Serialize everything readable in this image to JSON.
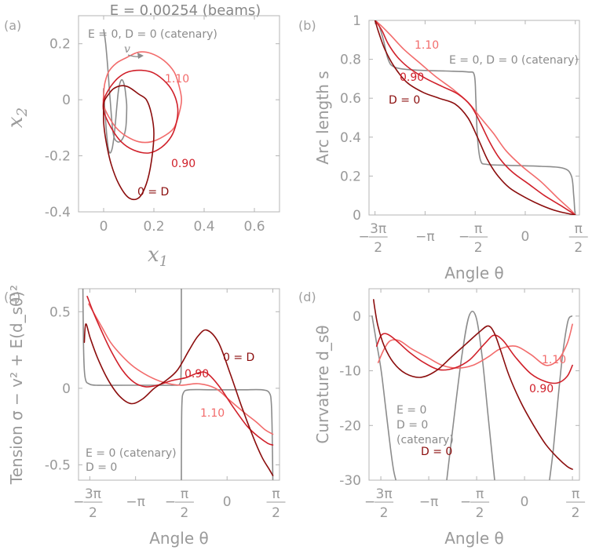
{
  "figure_title": "E = 0.00254 (beams)",
  "colors": {
    "catenary": "#8c8c8c",
    "D0": "#8b0d0d",
    "D090": "#d0202a",
    "D110": "#f26b6b",
    "axis": "#b4b4b4",
    "text": "#9a9a9a"
  },
  "chart_data": [
    {
      "panel": "(a)",
      "type": "line",
      "xlabel": "x_1",
      "ylabel": "x_2",
      "xlim": [
        -0.1,
        0.7
      ],
      "ylim": [
        -0.4,
        0.3
      ],
      "xticks": [
        0,
        0.2,
        0.4,
        0.6
      ],
      "xtick_labels": [
        "0",
        "0.2",
        "0.4",
        "0.6"
      ],
      "yticks": [
        -0.4,
        -0.2,
        0,
        0.2
      ],
      "ytick_labels": [
        "-0.4",
        "-0.2",
        "0",
        "0.2"
      ],
      "annotations": [
        {
          "text": "E = 0, D = 0 (catenary)",
          "color": "catenary"
        },
        {
          "text": "v",
          "color": "catenary"
        },
        {
          "text": "1.10",
          "color": "D110"
        },
        {
          "text": "0.90",
          "color": "D090"
        },
        {
          "text": "0 = D",
          "color": "D0"
        }
      ],
      "series": [
        {
          "name": "catenary",
          "color": "catenary",
          "x": [
            0,
            0.0,
            0.005,
            0.01,
            0.015,
            0.02,
            0.025,
            0.03,
            0.035,
            0.04,
            0.045,
            0.05,
            0.055,
            0.06,
            0.065,
            0.07,
            0.075,
            0.08,
            0.085,
            0.09,
            0.092,
            0.088,
            0.075,
            0.055,
            0.038,
            0.026,
            0.016,
            0.008,
            0.002,
            0
          ],
          "y": [
            0.04,
            0.02,
            -0.04,
            -0.1,
            -0.15,
            -0.18,
            -0.19,
            -0.185,
            -0.17,
            -0.14,
            -0.1,
            -0.05,
            0.0,
            0.04,
            0.06,
            0.07,
            0.07,
            0.06,
            0.04,
            0.0,
            -0.03,
            -0.1,
            -0.14,
            -0.15,
            -0.12,
            0.0,
            0.12,
            0.2,
            0.24,
            0.25
          ]
        },
        {
          "name": "D = 1.10",
          "color": "D110",
          "x": [
            0,
            0.0,
            0.02,
            0.05,
            0.09,
            0.14,
            0.19,
            0.24,
            0.28,
            0.3,
            0.31,
            0.3,
            0.28,
            0.24,
            0.19,
            0.14,
            0.09,
            0.05,
            0.02,
            0.005,
            0
          ],
          "y": [
            0.02,
            -0.02,
            -0.06,
            -0.1,
            -0.13,
            -0.15,
            -0.15,
            -0.13,
            -0.1,
            -0.05,
            0.0,
            0.05,
            0.1,
            0.14,
            0.165,
            0.17,
            0.15,
            0.13,
            0.1,
            0.06,
            0.02
          ]
        },
        {
          "name": "D = 0.90",
          "color": "D090",
          "x": [
            0,
            0.0,
            0.03,
            0.07,
            0.12,
            0.18,
            0.23,
            0.27,
            0.29,
            0.295,
            0.28,
            0.25,
            0.2,
            0.15,
            0.1,
            0.06,
            0.03,
            0.01,
            0
          ],
          "y": [
            0.0,
            -0.04,
            -0.1,
            -0.15,
            -0.18,
            -0.19,
            -0.17,
            -0.13,
            -0.08,
            -0.03,
            0.02,
            0.06,
            0.095,
            0.105,
            0.1,
            0.08,
            0.05,
            0.02,
            0.0
          ]
        },
        {
          "name": "D = 0",
          "color": "D0",
          "x": [
            0,
            0.0,
            0.01,
            0.03,
            0.06,
            0.1,
            0.14,
            0.17,
            0.19,
            0.2,
            0.19,
            0.17,
            0.14,
            0.1,
            0.07,
            0.04,
            0.02,
            0.005,
            0
          ],
          "y": [
            -0.02,
            -0.08,
            -0.15,
            -0.23,
            -0.3,
            -0.35,
            -0.35,
            -0.3,
            -0.22,
            -0.12,
            -0.05,
            0.0,
            0.02,
            0.045,
            0.05,
            0.04,
            0.02,
            0.0,
            -0.02
          ]
        }
      ]
    },
    {
      "panel": "(b)",
      "type": "line",
      "xlabel": "Angle θ",
      "ylabel": "Arc length s",
      "xlim": [
        -4.9,
        1.7
      ],
      "ylim": [
        0,
        1
      ],
      "xticks": [
        -4.712,
        -3.1416,
        -1.5708,
        0,
        1.5708
      ],
      "xtick_labels": [
        "-3π/2",
        "-π",
        "-π/2",
        "0",
        "π/2"
      ],
      "yticks": [
        0,
        0.2,
        0.4,
        0.6,
        0.8,
        1
      ],
      "ytick_labels": [
        "0",
        "0.2",
        "0.4",
        "0.6",
        "0.8",
        "1"
      ],
      "annotations": [
        {
          "text": "1.10",
          "color": "D110"
        },
        {
          "text": "E = 0, D = 0 (catenary)",
          "color": "catenary"
        },
        {
          "text": "0.90",
          "color": "D090"
        },
        {
          "text": "D = 0",
          "color": "D0"
        }
      ],
      "series": [
        {
          "name": "catenary",
          "color": "catenary",
          "x": [
            -4.71,
            -4.6,
            -4.45,
            -4.3,
            -4.1,
            -3.5,
            -2.5,
            -1.8,
            -1.6,
            -1.55,
            -1.5,
            -1.4,
            -1.2,
            -0.5,
            0.5,
            1.2,
            1.45,
            1.52,
            1.55,
            1.57
          ],
          "y": [
            1,
            0.98,
            0.9,
            0.8,
            0.76,
            0.745,
            0.74,
            0.735,
            0.72,
            0.6,
            0.4,
            0.28,
            0.26,
            0.255,
            0.25,
            0.24,
            0.2,
            0.1,
            0.03,
            0
          ]
        },
        {
          "name": "D = 1.10",
          "color": "D110",
          "x": [
            -4.71,
            -4.5,
            -4.2,
            -3.8,
            -3.3,
            -2.8,
            -2.3,
            -1.8,
            -1.4,
            -1.0,
            -0.6,
            -0.1,
            0.5,
            1.0,
            1.4,
            1.57
          ],
          "y": [
            1,
            0.97,
            0.92,
            0.85,
            0.78,
            0.71,
            0.65,
            0.58,
            0.5,
            0.42,
            0.33,
            0.25,
            0.17,
            0.09,
            0.03,
            0
          ]
        },
        {
          "name": "D = 0.90",
          "color": "D090",
          "x": [
            -4.71,
            -4.5,
            -4.3,
            -4.0,
            -3.6,
            -3.1,
            -2.6,
            -2.1,
            -1.7,
            -1.4,
            -1.1,
            -0.8,
            -0.4,
            0.1,
            0.6,
            1.1,
            1.57
          ],
          "y": [
            1,
            0.95,
            0.88,
            0.81,
            0.75,
            0.7,
            0.66,
            0.62,
            0.56,
            0.47,
            0.37,
            0.29,
            0.22,
            0.16,
            0.1,
            0.05,
            0
          ]
        },
        {
          "name": "D = 0",
          "color": "D0",
          "x": [
            -4.71,
            -4.6,
            -4.4,
            -4.1,
            -3.7,
            -3.2,
            -2.7,
            -2.2,
            -1.8,
            -1.5,
            -1.2,
            -0.9,
            -0.5,
            0.0,
            0.5,
            1.0,
            1.57
          ],
          "y": [
            1,
            0.94,
            0.85,
            0.76,
            0.68,
            0.63,
            0.6,
            0.57,
            0.5,
            0.4,
            0.29,
            0.21,
            0.14,
            0.09,
            0.05,
            0.02,
            0
          ]
        }
      ]
    },
    {
      "panel": "(c)",
      "type": "line",
      "xlabel": "Angle θ",
      "ylabel": "Tension σ − v² + E(d_sθ)²",
      "xlim": [
        -5.1,
        1.8
      ],
      "ylim": [
        -0.6,
        0.65
      ],
      "xticks": [
        -4.712,
        -3.1416,
        -1.5708,
        0,
        1.5708
      ],
      "xtick_labels": [
        "-3π/2",
        "-π",
        "-π/2",
        "0",
        "π/2"
      ],
      "yticks": [
        -0.5,
        0,
        0.5
      ],
      "ytick_labels": [
        "-0.5",
        "0",
        "0.5"
      ],
      "annotations": [
        {
          "text": "0 = D",
          "color": "D0"
        },
        {
          "text": "0.90",
          "color": "D090"
        },
        {
          "text": "1.10",
          "color": "D110"
        },
        {
          "text": "E = 0 (catenary)",
          "color": "catenary"
        },
        {
          "text": "D = 0",
          "color": "catenary"
        }
      ],
      "series": [
        {
          "name": "catenary",
          "color": "catenary",
          "x": [
            -4.95,
            -4.93,
            -4.9,
            -4.85,
            -4.75,
            -4.5,
            -3.5,
            -2.5,
            -1.8,
            -1.62,
            -1.58,
            -1.57,
            -1.57
          ],
          "y": [
            0.65,
            0.3,
            0.12,
            0.05,
            0.03,
            0.02,
            0.02,
            0.02,
            0.02,
            0.03,
            0.1,
            0.4,
            0.65
          ]
        },
        {
          "name": "catenary-right",
          "color": "catenary",
          "x": [
            -1.57,
            -1.565,
            -1.55,
            -1.5,
            -1.3,
            -0.5,
            0.5,
            1.2,
            1.45,
            1.52,
            1.55,
            1.57
          ],
          "y": [
            -0.6,
            -0.3,
            -0.1,
            -0.03,
            -0.01,
            -0.01,
            -0.01,
            -0.01,
            -0.03,
            -0.1,
            -0.3,
            -0.6
          ]
        },
        {
          "name": "D = 1.10",
          "color": "D110",
          "x": [
            -4.75,
            -4.6,
            -4.3,
            -4.0,
            -3.6,
            -3.2,
            -2.7,
            -2.2,
            -1.6,
            -1.0,
            -0.4,
            0.1,
            0.6,
            1.0,
            1.3,
            1.57
          ],
          "y": [
            0.55,
            0.5,
            0.4,
            0.3,
            0.21,
            0.14,
            0.08,
            0.04,
            0.02,
            0.03,
            0.0,
            -0.08,
            -0.16,
            -0.22,
            -0.27,
            -0.3
          ]
        },
        {
          "name": "D = 0.90",
          "color": "D090",
          "x": [
            -4.8,
            -4.6,
            -4.3,
            -4.0,
            -3.6,
            -3.2,
            -2.8,
            -2.4,
            -1.9,
            -1.4,
            -1.0,
            -0.7,
            -0.3,
            0.2,
            0.7,
            1.1,
            1.4,
            1.57
          ],
          "y": [
            0.6,
            0.5,
            0.37,
            0.25,
            0.12,
            0.04,
            0.01,
            0.02,
            0.05,
            0.07,
            0.1,
            0.1,
            0.02,
            -0.12,
            -0.25,
            -0.32,
            -0.36,
            -0.37
          ]
        },
        {
          "name": "D = 0",
          "color": "D0",
          "x": [
            -4.9,
            -4.85,
            -4.7,
            -4.45,
            -4.1,
            -3.7,
            -3.3,
            -2.9,
            -2.5,
            -2.1,
            -1.7,
            -1.3,
            -1.0,
            -0.7,
            -0.3,
            0.1,
            0.5,
            0.9,
            1.2,
            1.45,
            1.57
          ],
          "y": [
            0.3,
            0.42,
            0.33,
            0.2,
            0.06,
            -0.05,
            -0.1,
            -0.07,
            0.0,
            0.05,
            0.12,
            0.25,
            0.34,
            0.38,
            0.3,
            0.1,
            -0.12,
            -0.32,
            -0.45,
            -0.53,
            -0.57
          ]
        }
      ]
    },
    {
      "panel": "(d)",
      "type": "line",
      "xlabel": "Angle θ",
      "ylabel": "Curvature d_sθ",
      "xlim": [
        -5.1,
        1.8
      ],
      "ylim": [
        -30,
        5
      ],
      "xticks": [
        -4.712,
        -3.1416,
        -1.5708,
        0,
        1.5708
      ],
      "xtick_labels": [
        "-3π/2",
        "-π",
        "-π/2",
        "0",
        "π/2"
      ],
      "yticks": [
        -30,
        -20,
        -10,
        0
      ],
      "ytick_labels": [
        "-30",
        "-20",
        "-10",
        "0"
      ],
      "annotations": [
        {
          "text": "1.10",
          "color": "D110"
        },
        {
          "text": "0.90",
          "color": "D090"
        },
        {
          "text": "E = 0",
          "color": "catenary"
        },
        {
          "text": "D = 0",
          "color": "catenary"
        },
        {
          "text": "(catenary)",
          "color": "catenary"
        },
        {
          "text": "D = 0",
          "color": "D0"
        }
      ],
      "series": [
        {
          "name": "catenary-1",
          "color": "catenary",
          "x": [
            -5.0,
            -4.85,
            -4.7,
            -4.55,
            -4.4,
            -4.3,
            -4.22
          ],
          "y": [
            0,
            -5,
            -10,
            -17,
            -24,
            -28,
            -30
          ]
        },
        {
          "name": "catenary-2",
          "color": "catenary",
          "x": [
            -2.55,
            -2.3,
            -2.05,
            -1.82,
            -1.6,
            -1.4,
            -1.2,
            -0.98
          ],
          "y": [
            -30,
            -18,
            -7,
            0,
            0,
            -7,
            -18,
            -30
          ]
        },
        {
          "name": "catenary-3",
          "color": "catenary",
          "x": [
            0.82,
            0.95,
            1.1,
            1.25,
            1.42,
            1.55
          ],
          "y": [
            -30,
            -24,
            -15,
            -7,
            -1,
            0
          ]
        },
        {
          "name": "D = 1.10",
          "color": "D110",
          "x": [
            -4.8,
            -4.6,
            -4.4,
            -4.1,
            -3.7,
            -3.2,
            -2.7,
            -2.2,
            -1.7,
            -1.2,
            -0.8,
            -0.3,
            0.2,
            0.7,
            1.1,
            1.4,
            1.57
          ],
          "y": [
            -8.5,
            -6,
            -4.5,
            -4.5,
            -6,
            -7.5,
            -9,
            -9.5,
            -9,
            -7.5,
            -6,
            -5.5,
            -7,
            -9,
            -8,
            -5,
            -1.5
          ]
        },
        {
          "name": "D = 0.90",
          "color": "D090",
          "x": [
            -4.85,
            -4.7,
            -4.5,
            -4.2,
            -3.8,
            -3.3,
            -2.8,
            -2.3,
            -1.8,
            -1.3,
            -1.0,
            -0.7,
            -0.3,
            0.2,
            0.7,
            1.1,
            1.4,
            1.57
          ],
          "y": [
            -5.5,
            -3.5,
            -3.3,
            -4.5,
            -6.5,
            -8.5,
            -9.8,
            -9.5,
            -8,
            -5,
            -3.5,
            -4.5,
            -7.5,
            -10.5,
            -12,
            -12.2,
            -11,
            -9
          ]
        },
        {
          "name": "D = 0",
          "color": "D0",
          "x": [
            -4.95,
            -4.9,
            -4.8,
            -4.6,
            -4.3,
            -3.9,
            -3.4,
            -2.9,
            -2.4,
            -1.9,
            -1.5,
            -1.2,
            -1.0,
            -0.8,
            -0.5,
            -0.1,
            0.3,
            0.7,
            1.1,
            1.4,
            1.57
          ],
          "y": [
            3,
            1,
            -2,
            -5.5,
            -8.5,
            -10.5,
            -11.2,
            -10,
            -7.5,
            -5,
            -3,
            -1.8,
            -3,
            -6,
            -11,
            -16,
            -20,
            -23.5,
            -26,
            -27.5,
            -28
          ]
        }
      ]
    }
  ]
}
